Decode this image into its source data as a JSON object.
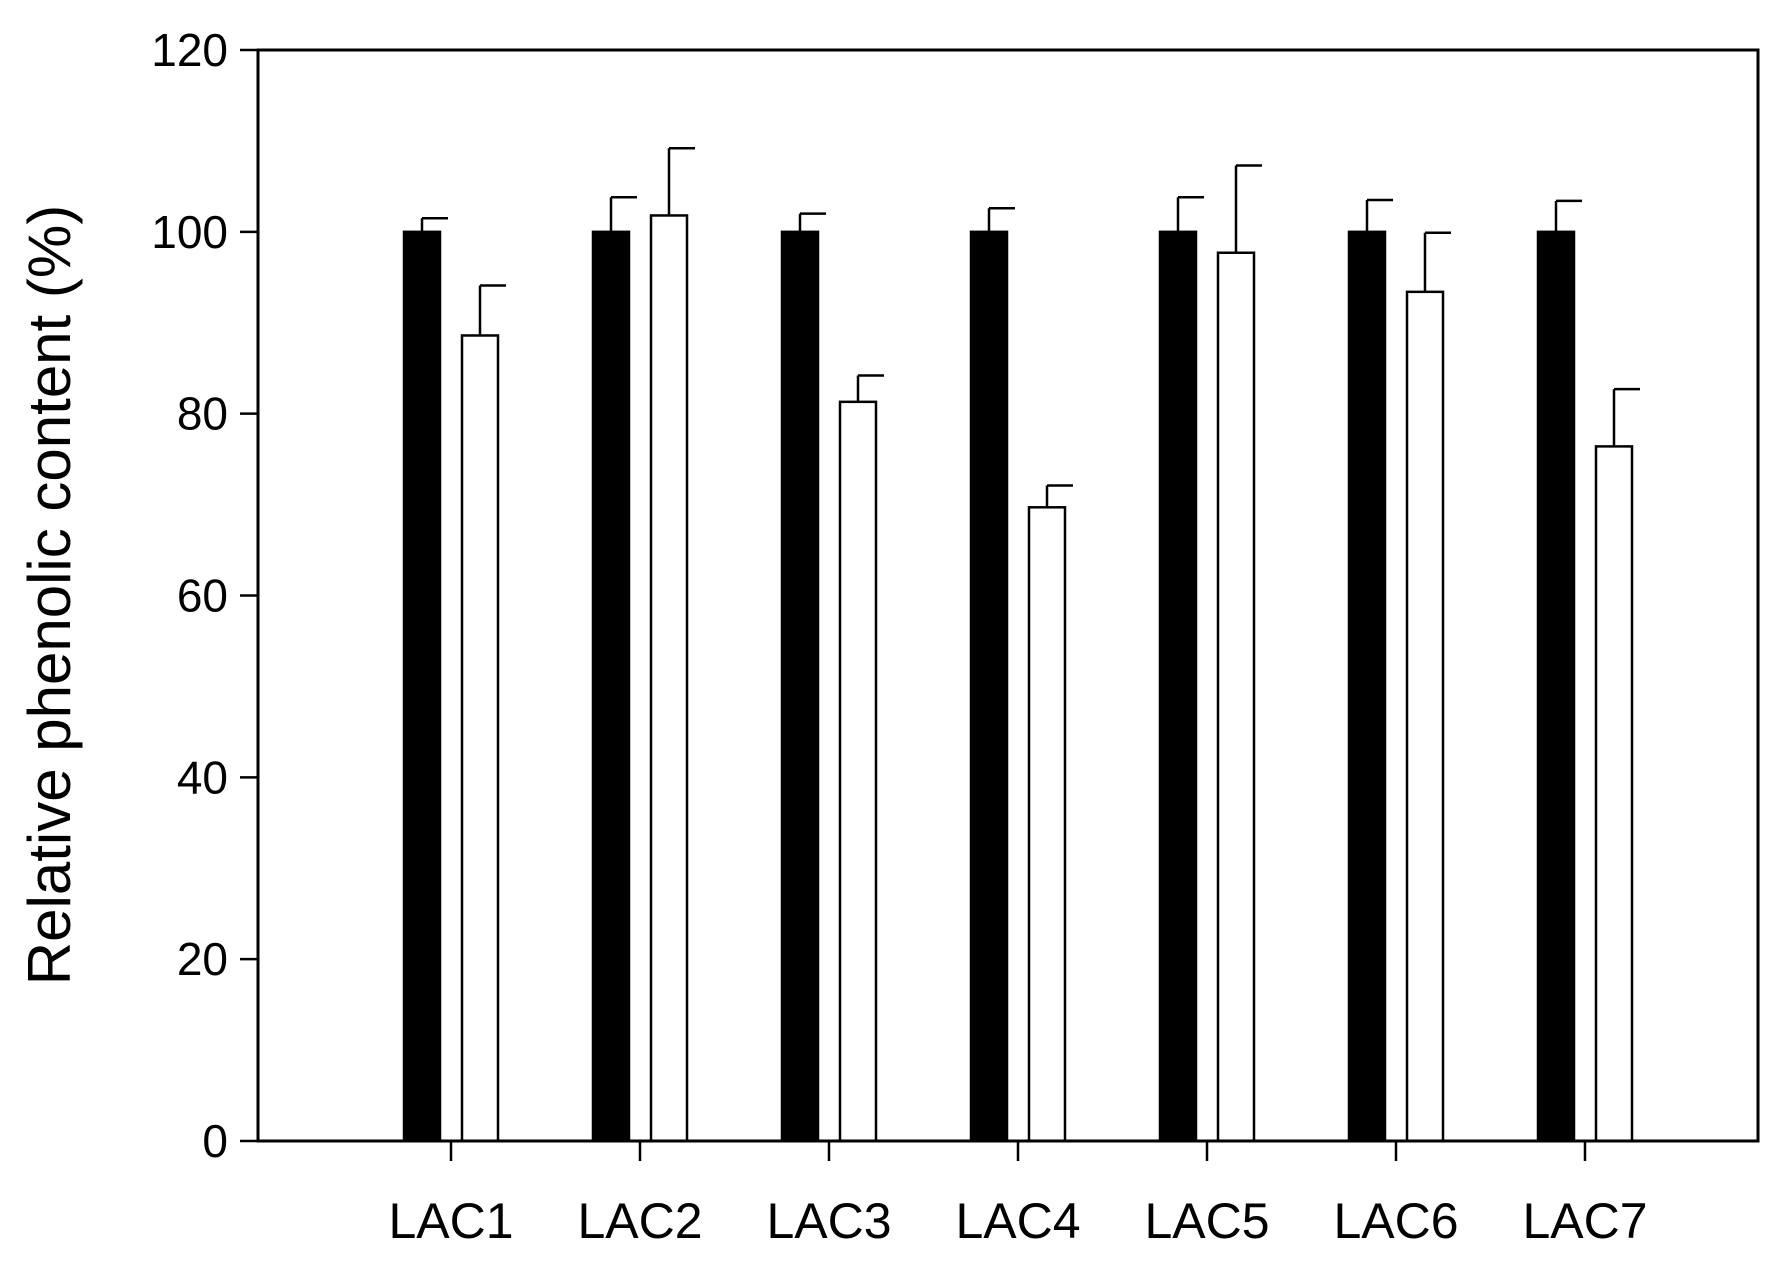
{
  "chart_data": {
    "type": "bar",
    "title": "",
    "xlabel": "",
    "ylabel": "Relative phenolic content (%)",
    "ylim": [
      0,
      120
    ],
    "yticks": [
      0,
      20,
      40,
      60,
      80,
      100,
      120
    ],
    "categories": [
      "LAC1",
      "LAC2",
      "LAC3",
      "LAC4",
      "LAC5",
      "LAC6",
      "LAC7"
    ],
    "series": [
      {
        "fill": "#000000",
        "values": [
          100,
          100,
          100,
          100,
          100,
          100,
          100
        ],
        "errors": [
          1.5,
          3.8,
          2.0,
          2.6,
          3.8,
          3.5,
          3.4
        ]
      },
      {
        "fill": "#ffffff",
        "values": [
          88.6,
          101.8,
          81.3,
          69.7,
          97.7,
          93.4,
          76.4
        ],
        "errors": [
          5.5,
          7.4,
          2.9,
          2.4,
          9.6,
          6.5,
          6.3
        ]
      }
    ],
    "grid": false,
    "legend": "none"
  }
}
